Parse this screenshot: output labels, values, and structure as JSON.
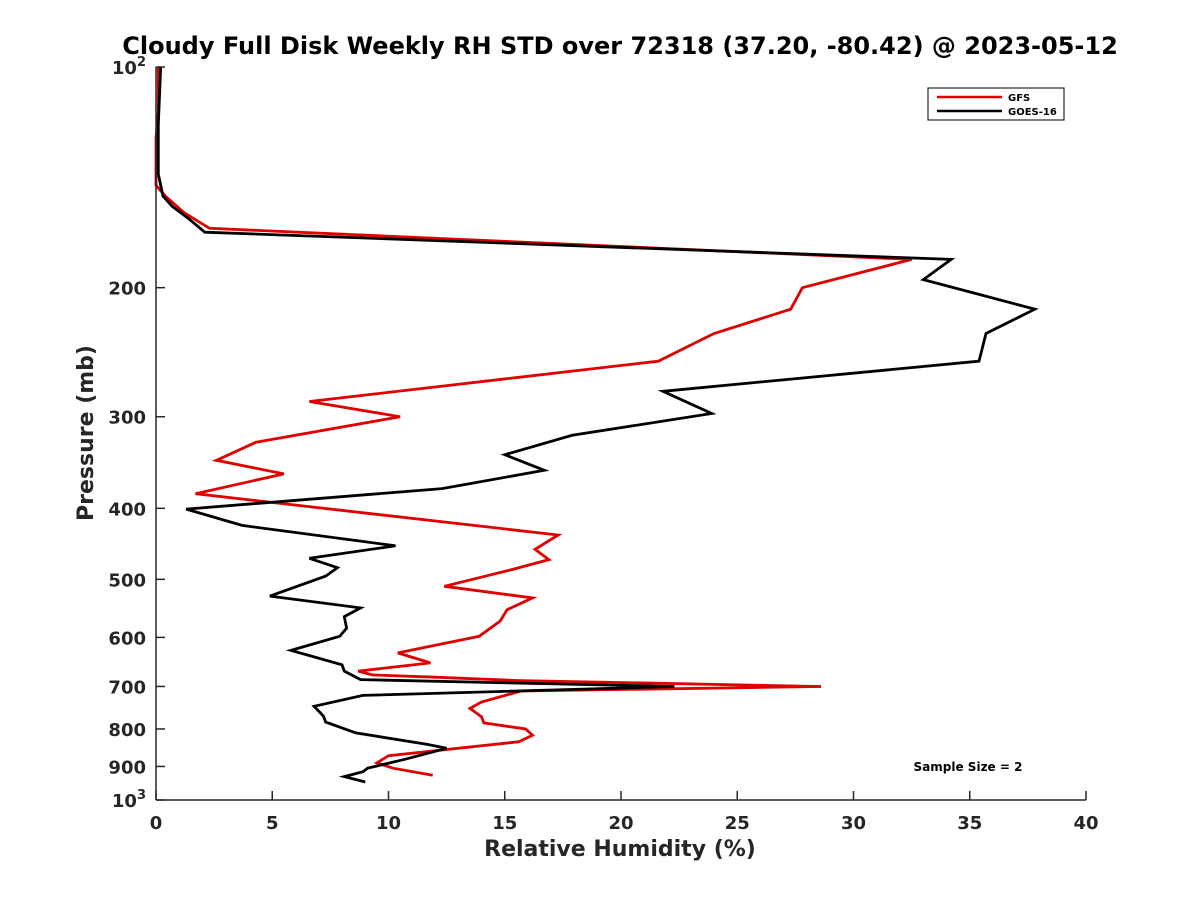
{
  "chart_data": {
    "type": "line",
    "title": "Cloudy Full Disk Weekly RH STD over 72318 (37.20, -80.42) @ 2023-05-12",
    "xlabel": "Relative Humidity (%)",
    "ylabel": "Pressure (mb)",
    "xlim": [
      0,
      40
    ],
    "ylim": [
      100,
      1000
    ],
    "yscale": "log",
    "y_reversed": true,
    "grid": false,
    "legend_location": "top-right",
    "x_ticks": [
      {
        "value": 0,
        "label": "0"
      },
      {
        "value": 5,
        "label": "5"
      },
      {
        "value": 10,
        "label": "10"
      },
      {
        "value": 15,
        "label": "15"
      },
      {
        "value": 20,
        "label": "20"
      },
      {
        "value": 25,
        "label": "25"
      },
      {
        "value": 30,
        "label": "30"
      },
      {
        "value": 35,
        "label": "35"
      },
      {
        "value": 40,
        "label": "40"
      }
    ],
    "y_ticks": [
      {
        "value": 100,
        "base": "10",
        "exp": "2"
      },
      {
        "value": 200,
        "label": "200"
      },
      {
        "value": 300,
        "label": "300"
      },
      {
        "value": 400,
        "label": "400"
      },
      {
        "value": 500,
        "label": "500"
      },
      {
        "value": 600,
        "label": "600"
      },
      {
        "value": 700,
        "label": "700"
      },
      {
        "value": 800,
        "label": "800"
      },
      {
        "value": 900,
        "label": "900"
      },
      {
        "value": 1000,
        "base": "10",
        "exp": "3"
      }
    ],
    "annotation": "Sample Size = 2",
    "series": [
      {
        "name": "GFS",
        "color": "#e00000",
        "points": [
          [
            0.1,
            100
          ],
          [
            0.1,
            115
          ],
          [
            0.0,
            125
          ],
          [
            0.0,
            135
          ],
          [
            0.0,
            145
          ],
          [
            0.4,
            150
          ],
          [
            1.2,
            158
          ],
          [
            2.3,
            166
          ],
          [
            32.5,
            183
          ],
          [
            27.8,
            200
          ],
          [
            27.3,
            214
          ],
          [
            24.0,
            231
          ],
          [
            21.6,
            252
          ],
          [
            6.6,
            286
          ],
          [
            10.5,
            300
          ],
          [
            4.3,
            325
          ],
          [
            2.6,
            344
          ],
          [
            5.5,
            359
          ],
          [
            1.7,
            382
          ],
          [
            17.3,
            435
          ],
          [
            16.3,
            455
          ],
          [
            16.9,
            470
          ],
          [
            15.3,
            485
          ],
          [
            12.4,
            511
          ],
          [
            16.2,
            530
          ],
          [
            15.1,
            550
          ],
          [
            14.8,
            570
          ],
          [
            13.9,
            598
          ],
          [
            10.4,
            630
          ],
          [
            11.8,
            650
          ],
          [
            8.7,
            667
          ],
          [
            9.3,
            675
          ],
          [
            12.0,
            680
          ],
          [
            15.5,
            687
          ],
          [
            28.6,
            700
          ],
          [
            15.7,
            710
          ],
          [
            14.0,
            735
          ],
          [
            13.5,
            750
          ],
          [
            14.0,
            770
          ],
          [
            14.1,
            785
          ],
          [
            15.9,
            800
          ],
          [
            16.2,
            816
          ],
          [
            15.6,
            833
          ],
          [
            10.0,
            870
          ],
          [
            9.5,
            890
          ],
          [
            10.2,
            905
          ],
          [
            11.9,
            925
          ]
        ]
      },
      {
        "name": "GOES-16",
        "color": "#000000",
        "points": [
          [
            0.2,
            100
          ],
          [
            0.1,
            120
          ],
          [
            0.1,
            140
          ],
          [
            0.3,
            150
          ],
          [
            0.7,
            155
          ],
          [
            1.4,
            161
          ],
          [
            2.1,
            168
          ],
          [
            34.2,
            183
          ],
          [
            33.0,
            195
          ],
          [
            37.8,
            214
          ],
          [
            35.7,
            231
          ],
          [
            35.4,
            252
          ],
          [
            21.8,
            277
          ],
          [
            23.9,
            297
          ],
          [
            17.9,
            318
          ],
          [
            15.0,
            338
          ],
          [
            16.7,
            355
          ],
          [
            12.3,
            376
          ],
          [
            1.3,
            401
          ],
          [
            3.7,
            422
          ],
          [
            10.3,
            450
          ],
          [
            6.6,
            468
          ],
          [
            7.8,
            482
          ],
          [
            7.3,
            495
          ],
          [
            4.9,
            527
          ],
          [
            8.8,
            547
          ],
          [
            8.1,
            562
          ],
          [
            8.2,
            583
          ],
          [
            7.9,
            598
          ],
          [
            5.8,
            625
          ],
          [
            8.0,
            654
          ],
          [
            8.1,
            667
          ],
          [
            8.8,
            685
          ],
          [
            22.3,
            700
          ],
          [
            8.9,
            720
          ],
          [
            6.8,
            745
          ],
          [
            7.2,
            768
          ],
          [
            7.3,
            783
          ],
          [
            8.6,
            810
          ],
          [
            11.7,
            840
          ],
          [
            12.5,
            850
          ],
          [
            10.7,
            880
          ],
          [
            9.1,
            905
          ],
          [
            8.9,
            915
          ],
          [
            8.1,
            929
          ],
          [
            9.0,
            945
          ]
        ]
      }
    ]
  }
}
